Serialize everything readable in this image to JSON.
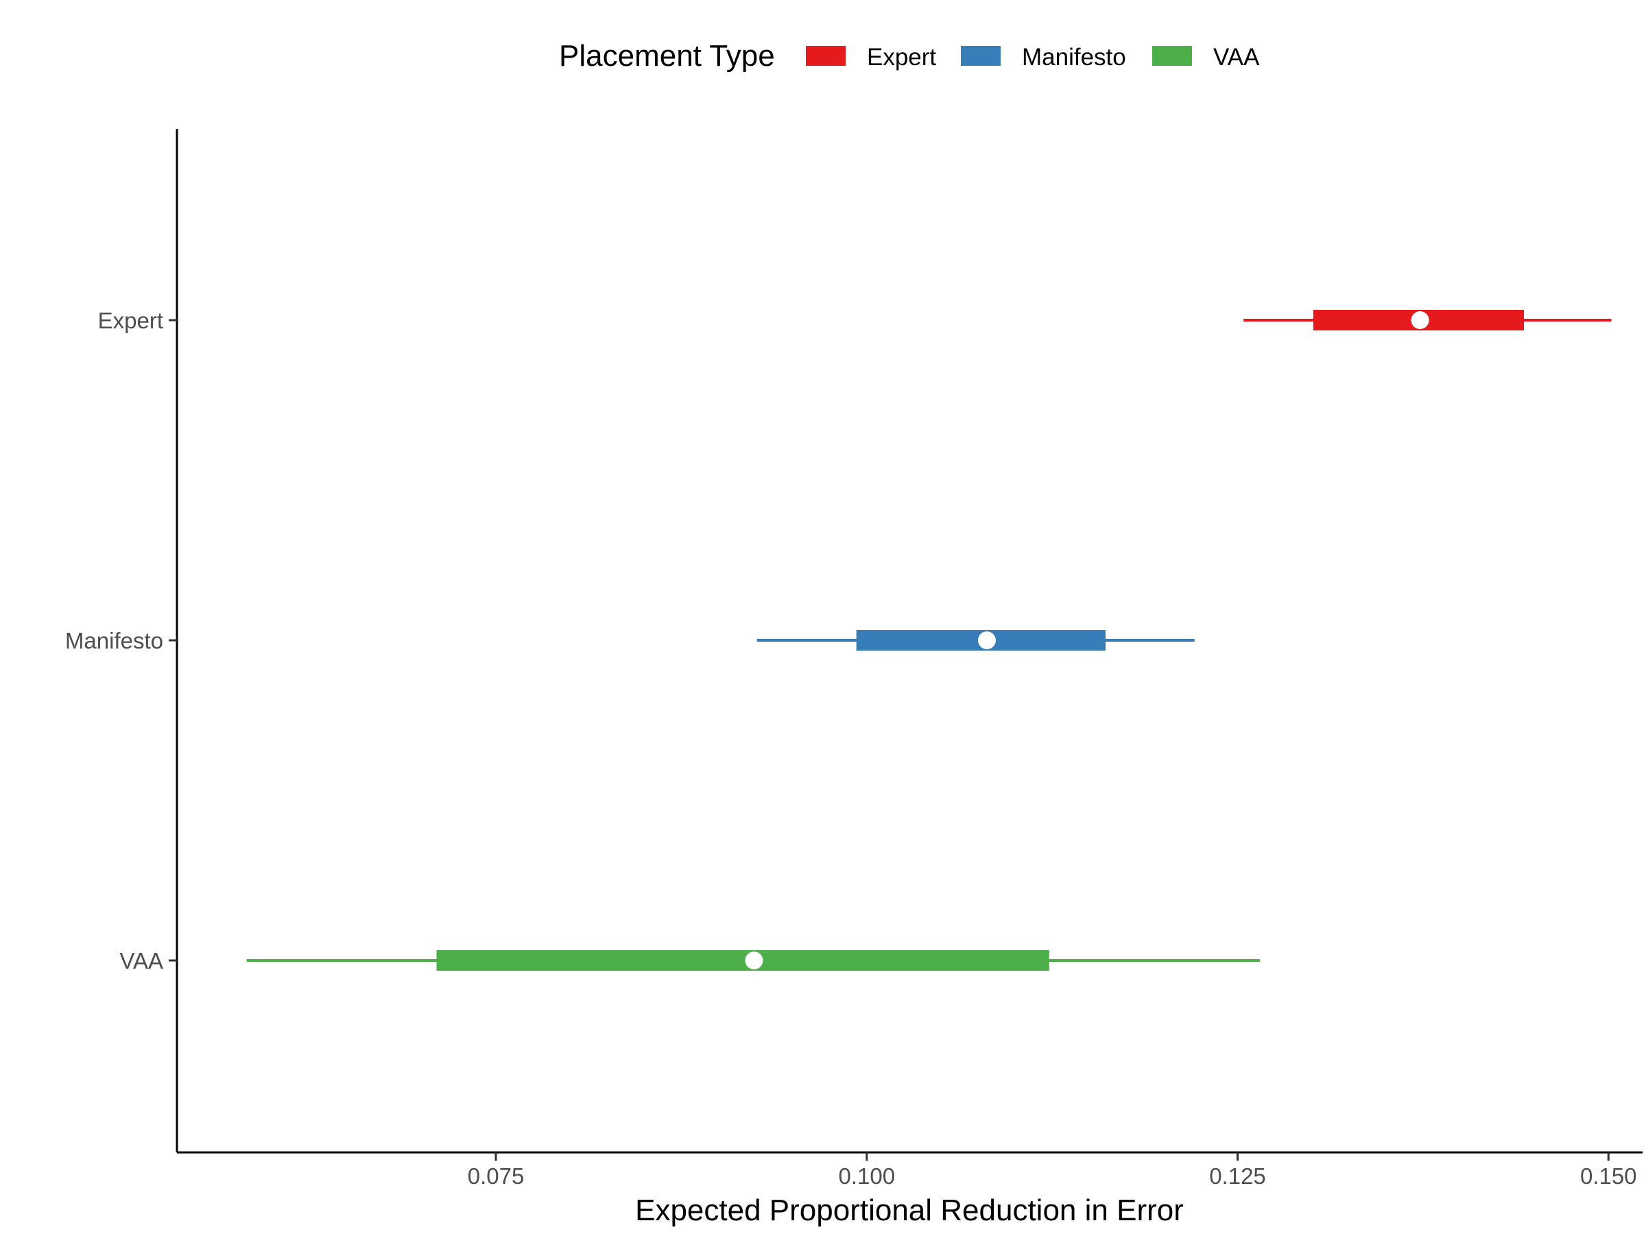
{
  "chart_data": {
    "type": "interval",
    "title": "",
    "xlabel": "Expected Proportional Reduction in Error",
    "ylabel": "",
    "xlim": [
      0.0535,
      0.1523
    ],
    "x_ticks": [
      0.075,
      0.1,
      0.125,
      0.15
    ],
    "x_tick_labels": [
      "0.075",
      "0.100",
      "0.125",
      "0.150"
    ],
    "categories": [
      "Expert",
      "Manifesto",
      "VAA"
    ],
    "legend": {
      "title": "Placement Type",
      "position": "top",
      "entries": [
        {
          "label": "Expert",
          "color": "#e41a1c"
        },
        {
          "label": "Manifesto",
          "color": "#377eb8"
        },
        {
          "label": "VAA",
          "color": "#4daf4a"
        }
      ]
    },
    "series": [
      {
        "category": "Expert",
        "color": "#e41a1c",
        "point": 0.1373,
        "inner": [
          0.1301,
          0.1443
        ],
        "outer": [
          0.1254,
          0.1502
        ]
      },
      {
        "category": "Manifesto",
        "color": "#377eb8",
        "point": 0.1081,
        "inner": [
          0.0993,
          0.1161
        ],
        "outer": [
          0.0926,
          0.1221
        ]
      },
      {
        "category": "VAA",
        "color": "#4daf4a",
        "point": 0.0924,
        "inner": [
          0.071,
          0.1123
        ],
        "outer": [
          0.0582,
          0.1265
        ]
      }
    ],
    "grid": false,
    "point_color": "#ffffff"
  }
}
